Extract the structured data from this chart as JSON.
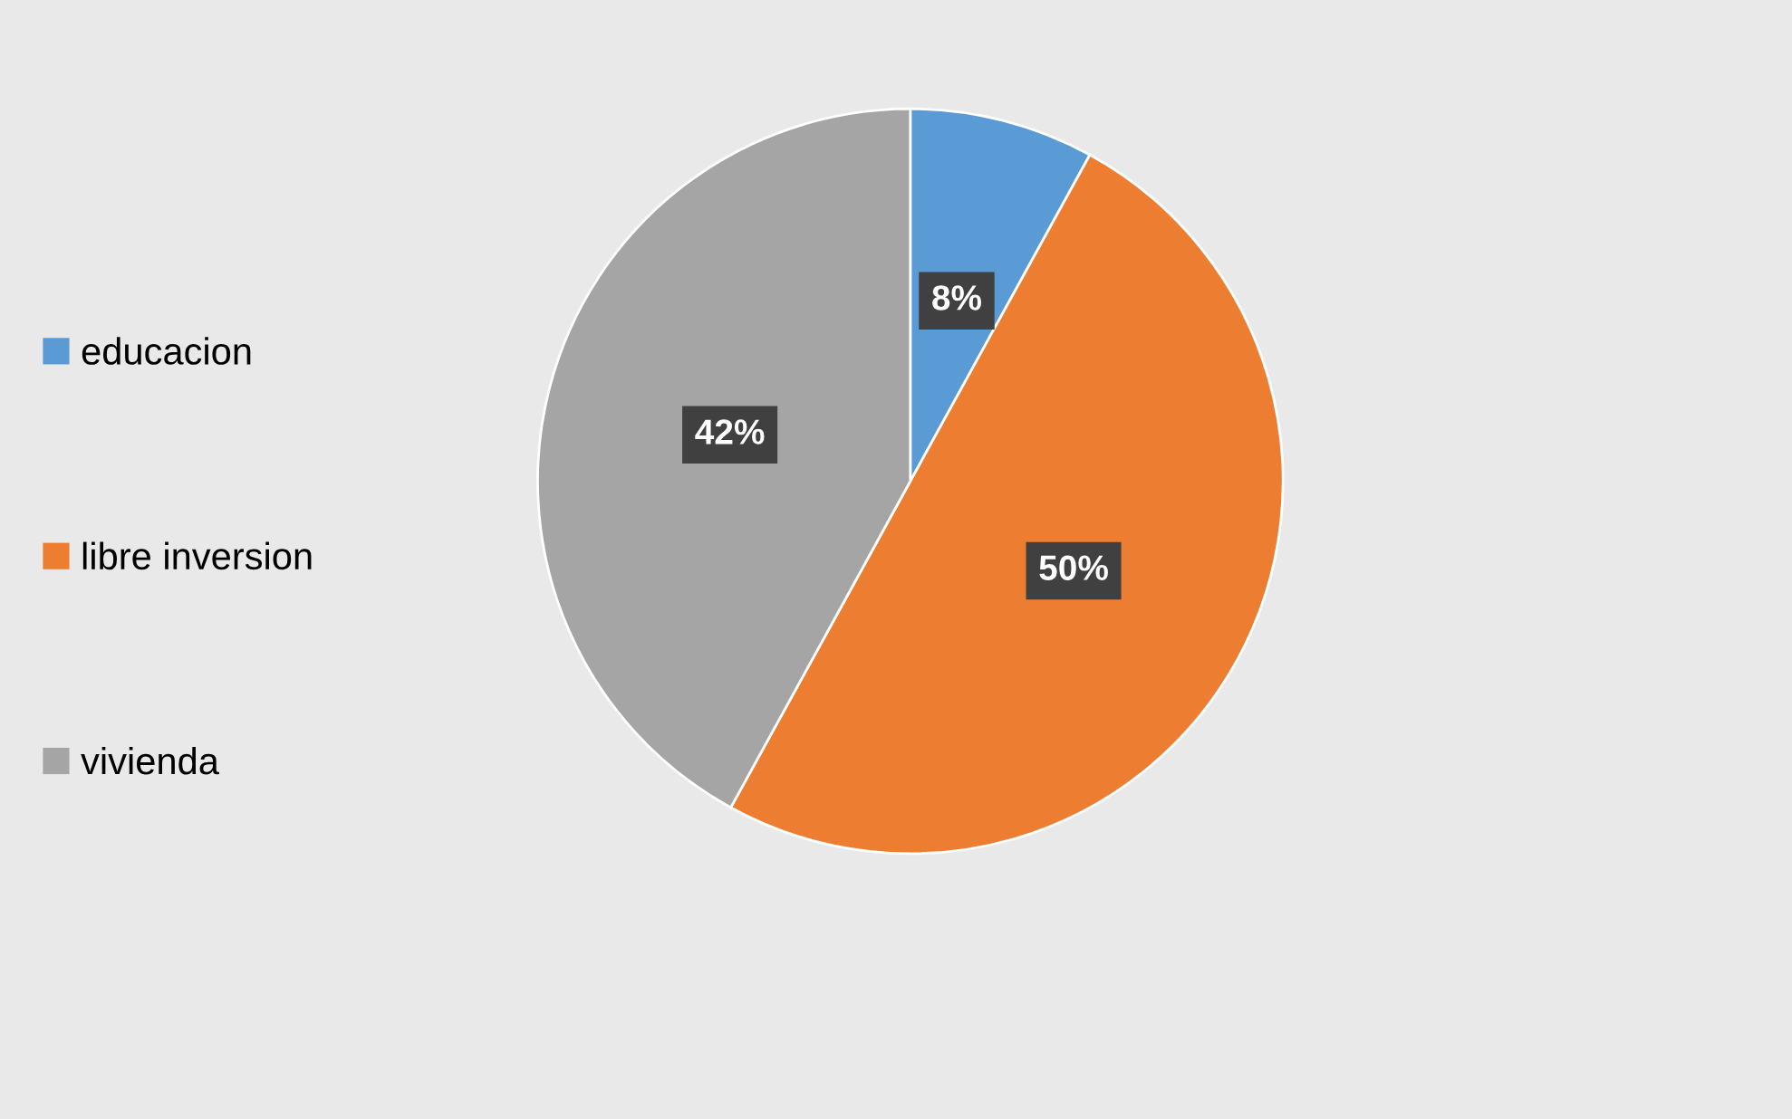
{
  "chart_data": {
    "type": "pie",
    "categories": [
      "educacion",
      "libre inversion",
      "vivienda"
    ],
    "values": [
      8,
      50,
      42
    ],
    "colors": [
      "#5b9bd5",
      "#ed7d31",
      "#a5a5a5"
    ],
    "value_labels": [
      "8%",
      "50%",
      "42%"
    ],
    "legend": "left"
  }
}
